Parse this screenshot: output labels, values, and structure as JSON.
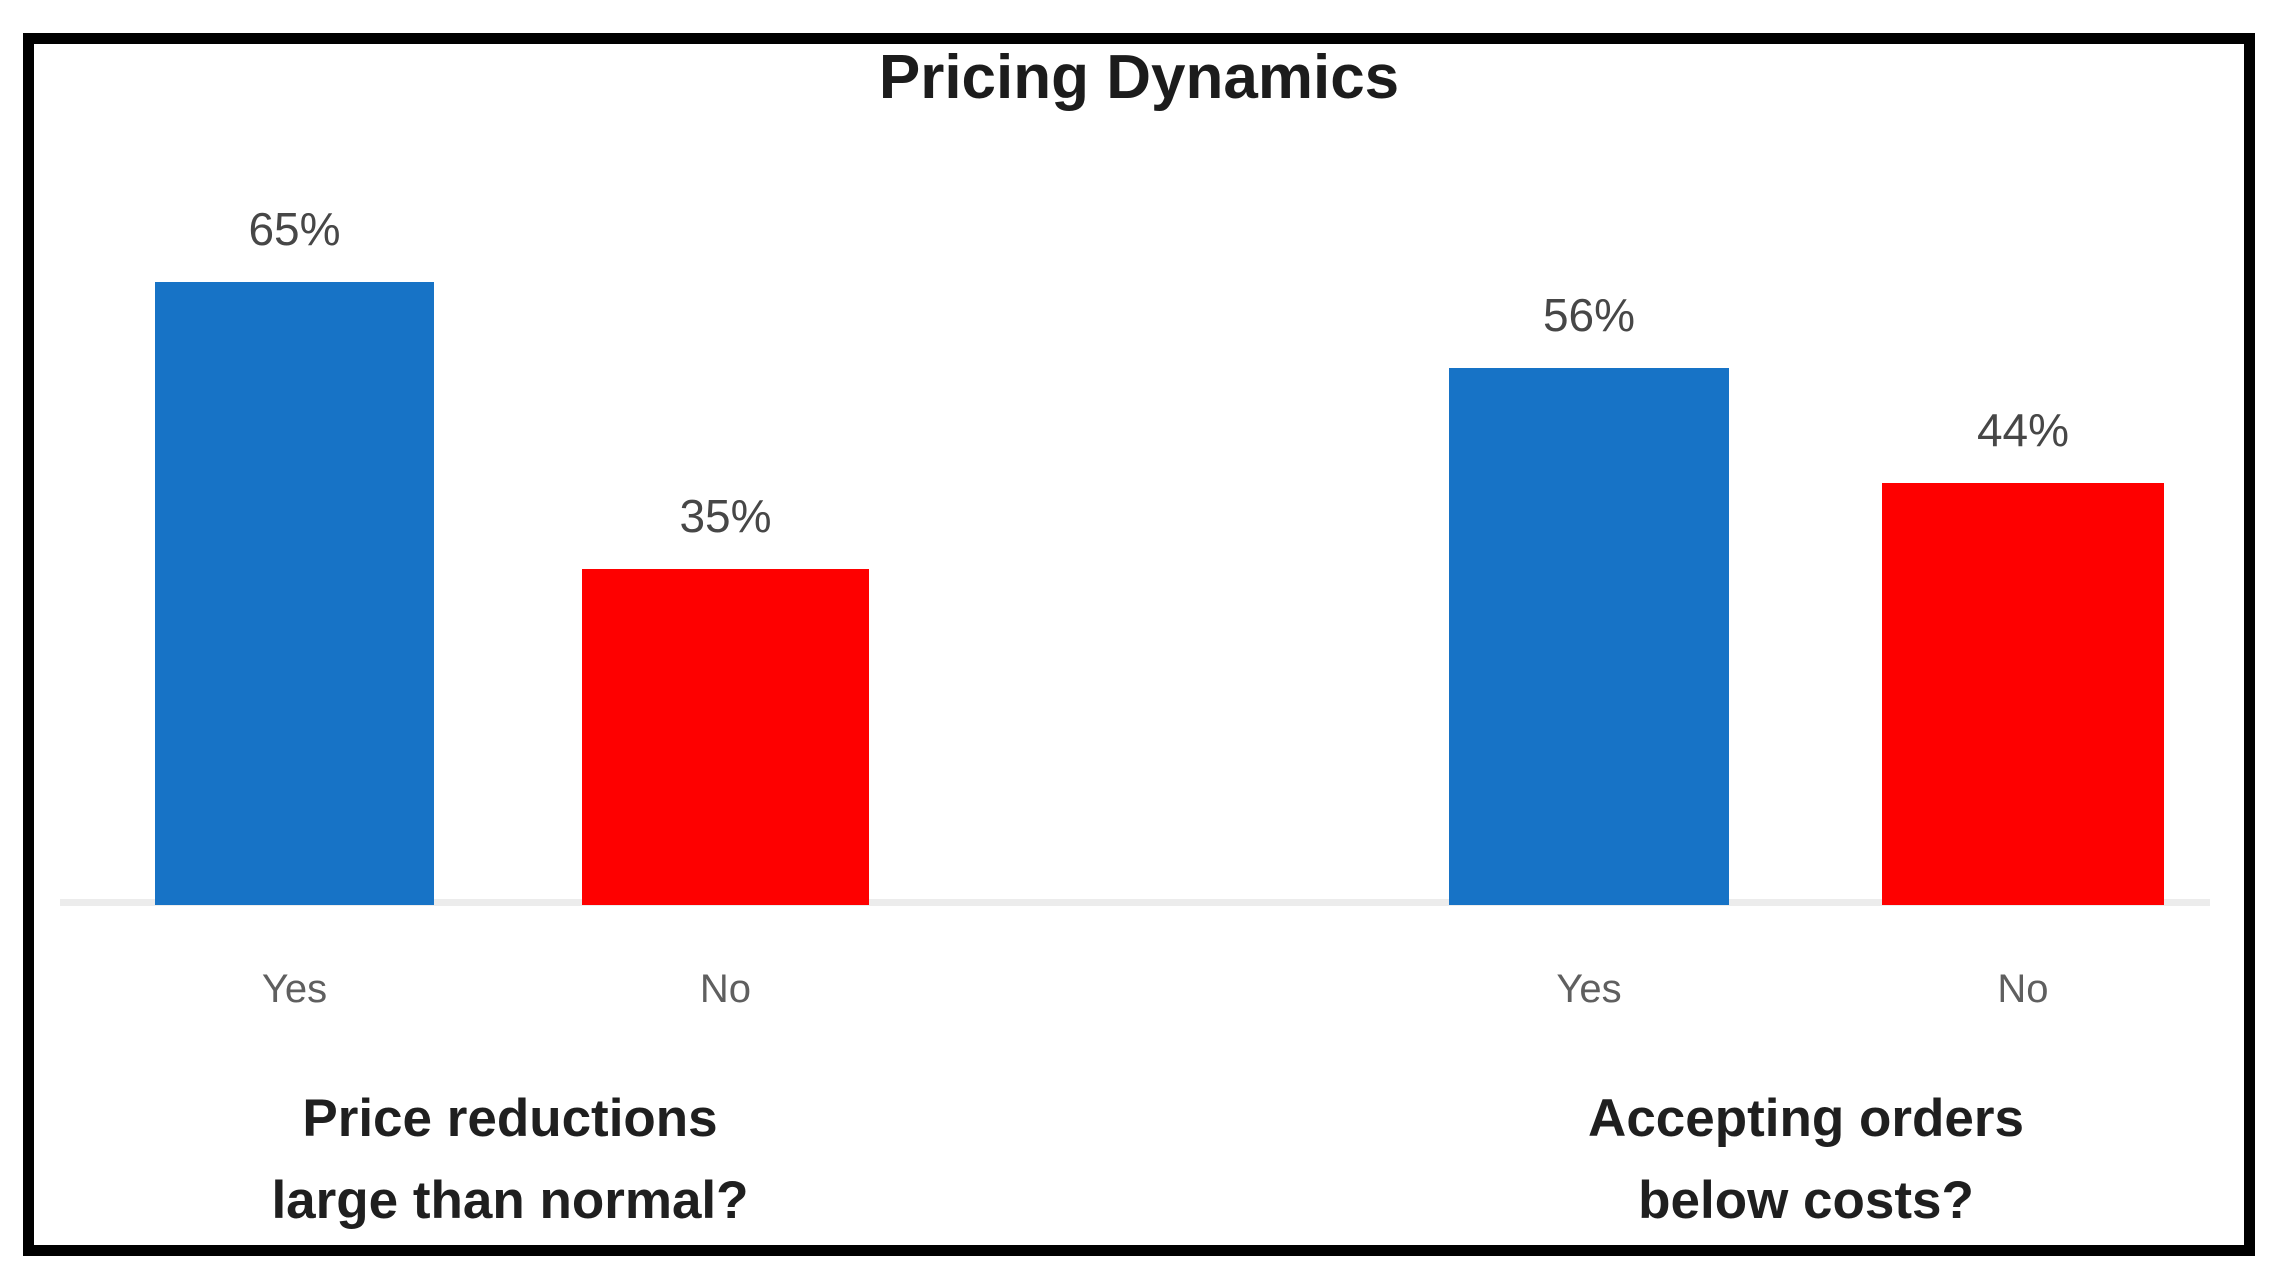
{
  "chart_data": {
    "type": "bar",
    "title": "Pricing Dynamics",
    "y_unit": "percent",
    "ylim": [
      0,
      100
    ],
    "grid": false,
    "legend": false,
    "axis_line_color": "#ececec",
    "value_label_color": "#474747",
    "tick_label_color": "#5f5f5f",
    "groups": [
      {
        "question_line1": "Price reductions",
        "question_line2": "large than normal?",
        "categories": [
          "Yes",
          "No"
        ],
        "values": [
          65,
          35
        ],
        "value_labels": [
          "65%",
          "35%"
        ],
        "colors": [
          "#1773c6",
          "#fe0000"
        ]
      },
      {
        "question_line1": "Accepting orders",
        "question_line2": "below costs?",
        "categories": [
          "Yes",
          "No"
        ],
        "values": [
          56,
          44
        ],
        "value_labels": [
          "56%",
          "44%"
        ],
        "colors": [
          "#1773c6",
          "#fe0000"
        ]
      }
    ]
  }
}
